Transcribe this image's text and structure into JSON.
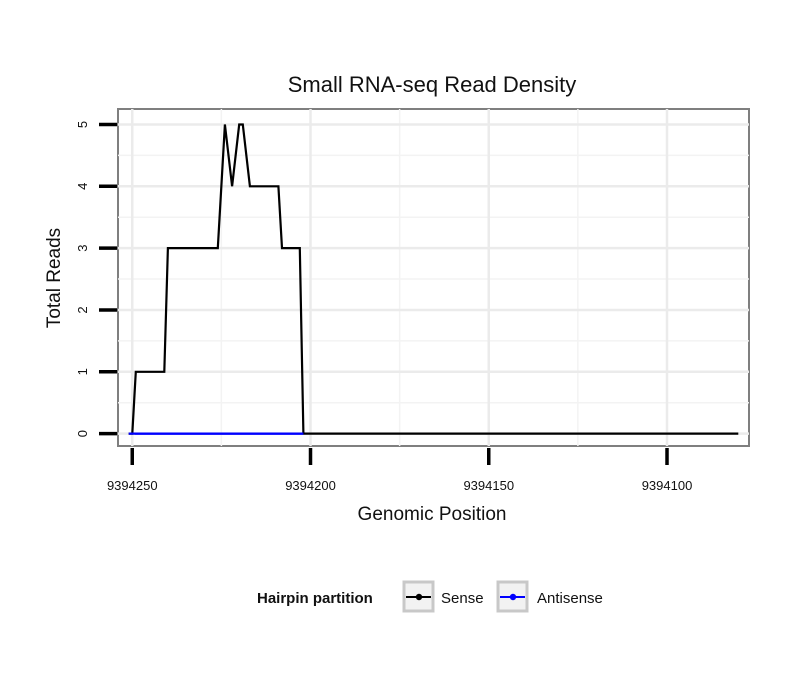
{
  "chart_data": {
    "type": "line",
    "title": "Small RNA-seq Read Density",
    "xlabel": "Genomic Position",
    "ylabel": "Total Reads",
    "xlim": [
      9394254,
      9394077
    ],
    "ylim": [
      -0.2,
      5.25
    ],
    "x_reversed": true,
    "x_ticks": [
      9394250,
      9394200,
      9394150,
      9394100
    ],
    "x_tick_labels": [
      "9394250",
      "9394200",
      "9394150",
      "9394100"
    ],
    "y_ticks": [
      0,
      1,
      2,
      3,
      4,
      5
    ],
    "y_tick_labels": [
      "0",
      "1",
      "2",
      "3",
      "4",
      "5"
    ],
    "grid": true,
    "legend": {
      "title": "Hairpin partition",
      "position": "bottom",
      "entries": [
        "Sense",
        "Antisense"
      ]
    },
    "series": [
      {
        "name": "Sense",
        "color": "#000000",
        "x": [
          9394251,
          9394250,
          9394249,
          9394241,
          9394240,
          9394226,
          9394224,
          9394222,
          9394220,
          9394219,
          9394217,
          9394209,
          9394208,
          9394203,
          9394202,
          9394080
        ],
        "y": [
          0,
          0,
          1,
          1,
          3,
          3,
          5,
          4,
          5,
          5,
          4,
          4,
          3,
          3,
          0,
          0
        ]
      },
      {
        "name": "Antisense",
        "color": "#0000ff",
        "x": [
          9394251,
          9394202
        ],
        "y": [
          0,
          0
        ]
      }
    ]
  }
}
